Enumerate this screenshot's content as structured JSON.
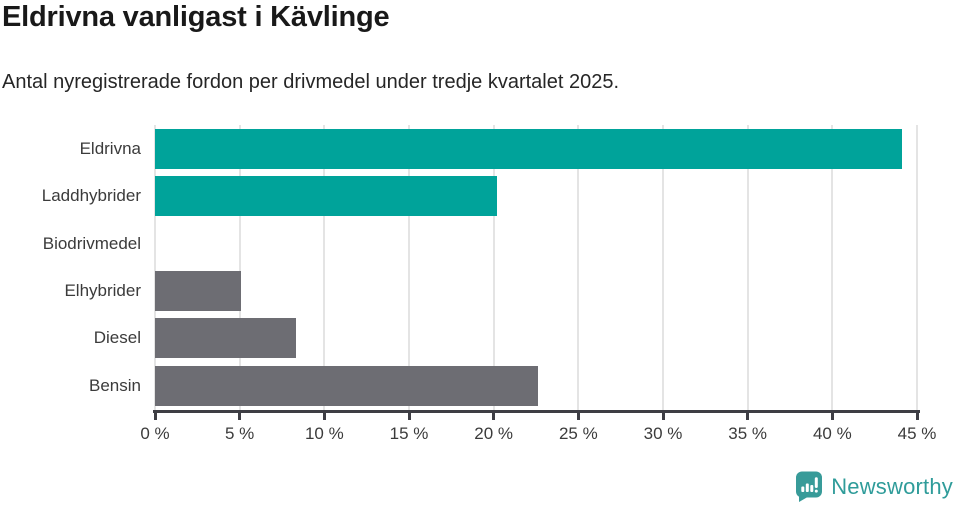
{
  "header": {
    "title": "Eldrivna vanligast i Kävlinge",
    "subtitle": "Antal nyregistrerade fordon per drivmedel under tredje kvartalet 2025."
  },
  "chart_data": {
    "type": "bar",
    "orientation": "horizontal",
    "title": "Eldrivna vanligast i Kävlinge",
    "subtitle": "Antal nyregistrerade fordon per drivmedel under tredje kvartalet 2025.",
    "categories": [
      "Eldrivna",
      "Laddhybrider",
      "Biodrivmedel",
      "Elhybrider",
      "Diesel",
      "Bensin"
    ],
    "values": [
      44.1,
      20.2,
      0,
      5.1,
      8.3,
      22.6
    ],
    "unit": "%",
    "bar_colors": [
      "#00A39A",
      "#00A39A",
      "#6D6D73",
      "#6D6D73",
      "#6D6D73",
      "#6D6D73"
    ],
    "xlim": [
      0,
      45
    ],
    "x_tick_step": 5,
    "x_tick_labels": [
      "0 %",
      "5 %",
      "10 %",
      "15 %",
      "20 %",
      "25 %",
      "30 %",
      "35 %",
      "40 %",
      "45 %"
    ],
    "grid": true,
    "legend_position": "none"
  },
  "footer": {
    "brand": "Newsworthy",
    "brand_color": "#2F9C9A",
    "icon_color": "#389B99"
  },
  "colors": {
    "accent_teal": "#00A39A",
    "bar_gray": "#6D6D73",
    "grid_line": "#E4E4E4",
    "axis_line": "#3E3E44",
    "title_text": "#191919",
    "label_text": "#3B3B3B"
  }
}
